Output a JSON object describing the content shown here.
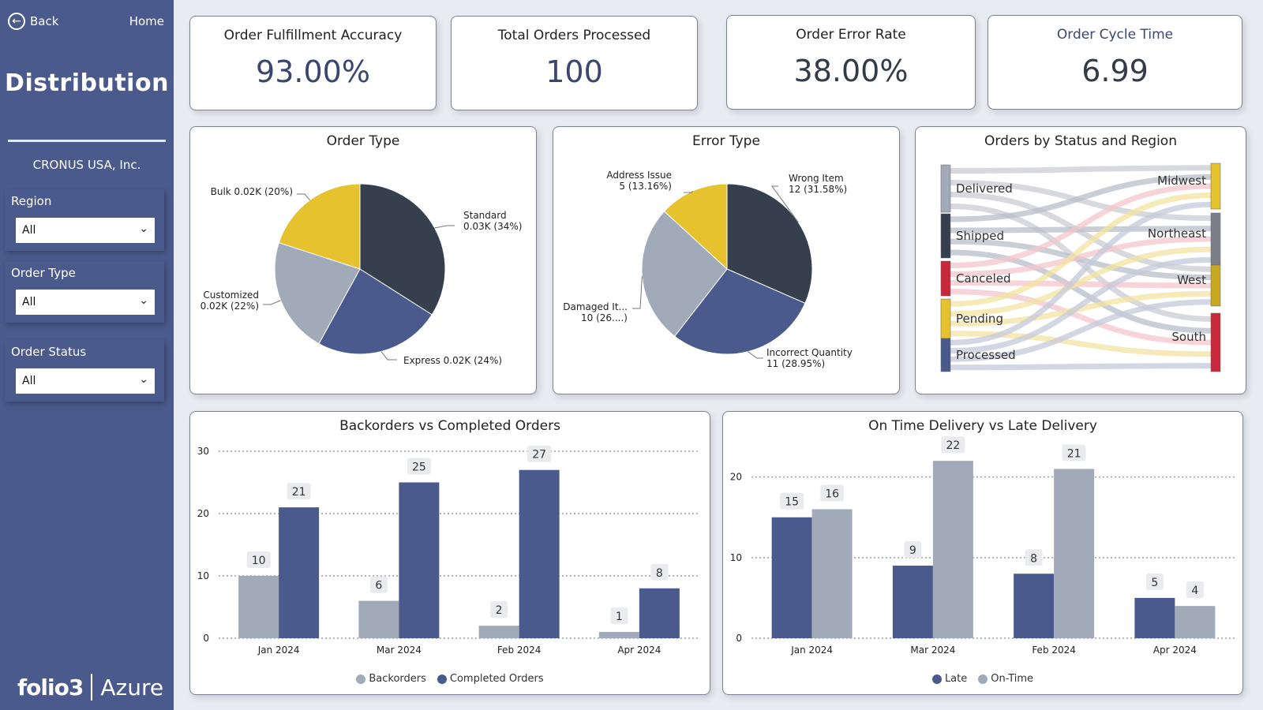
{
  "nav": {
    "back_label": "Back",
    "home_label": "Home"
  },
  "sidebar": {
    "title": "Distribution",
    "company": "CRONUS USA, Inc.",
    "filters": [
      {
        "label": "Region",
        "value": "All"
      },
      {
        "label": "Order Type",
        "value": "All"
      },
      {
        "label": "Order Status",
        "value": "All"
      }
    ],
    "brand_left": "folio3",
    "brand_right": "Azure"
  },
  "kpis": [
    {
      "label": "Order Fulfillment Accuracy",
      "value": "93.00%"
    },
    {
      "label": "Total Orders Processed",
      "value": "100"
    },
    {
      "label": "Order Error Rate",
      "value": "38.00%"
    },
    {
      "label": "Order Cycle Time",
      "value": "6.99"
    }
  ],
  "colors": {
    "navy": "#4a5a8c",
    "dark": "#363f4e",
    "gray": "#a0aab9",
    "yellow": "#e6c22f",
    "red": "#c8283c",
    "gold": "#c8a820",
    "slate": "#7a7f88"
  },
  "chart_data": [
    {
      "type": "pie",
      "title": "Order Type",
      "slices": [
        {
          "label": "Standard",
          "value": 34,
          "text_1": "Standard",
          "text_2": "0.03K (34%)",
          "color": "#363f4e"
        },
        {
          "label": "Express",
          "value": 24,
          "text_1": "Express 0.02K (24%)",
          "text_2": "",
          "color": "#4a5a8c"
        },
        {
          "label": "Customized",
          "value": 22,
          "text_1": "Customized",
          "text_2": "0.02K (22%)",
          "color": "#a0aab9"
        },
        {
          "label": "Bulk",
          "value": 20,
          "text_1": "Bulk 0.02K (20%)",
          "text_2": "",
          "color": "#e6c22f"
        }
      ]
    },
    {
      "type": "pie",
      "title": "Error Type",
      "slices": [
        {
          "label": "Wrong Item",
          "value": 12,
          "text_1": "Wrong Item",
          "text_2": "12 (31.58%)",
          "color": "#363f4e"
        },
        {
          "label": "Incorrect Quantity",
          "value": 11,
          "text_1": "Incorrect Quantity",
          "text_2": "11 (28.95%)",
          "color": "#4a5a8c"
        },
        {
          "label": "Damaged It...",
          "value": 10,
          "text_1": "Damaged It...",
          "text_2": "10 (26....)",
          "color": "#a0aab9"
        },
        {
          "label": "Address Issue",
          "value": 5,
          "text_1": "Address Issue",
          "text_2": "5 (13.16%)",
          "color": "#e6c22f"
        }
      ]
    },
    {
      "type": "sankey",
      "title": "Orders by Status and Region",
      "sources": [
        {
          "label": "Delivered",
          "color": "#a0aab9"
        },
        {
          "label": "Shipped",
          "color": "#363f4e"
        },
        {
          "label": "Canceled",
          "color": "#c8283c"
        },
        {
          "label": "Pending",
          "color": "#e6c22f"
        },
        {
          "label": "Processed",
          "color": "#4a5a8c"
        }
      ],
      "targets": [
        {
          "label": "Midwest",
          "color": "#e6c22f"
        },
        {
          "label": "Northeast",
          "color": "#7a7f88"
        },
        {
          "label": "West",
          "color": "#c8a820"
        },
        {
          "label": "South",
          "color": "#c8283c"
        }
      ]
    },
    {
      "type": "bar",
      "title": "Backorders vs Completed Orders",
      "categories": [
        "Jan 2024",
        "Mar 2024",
        "Feb 2024",
        "Apr 2024"
      ],
      "ylim": [
        0,
        30
      ],
      "yticks": [
        "0",
        "10",
        "20",
        "30"
      ],
      "series": [
        {
          "name": "Backorders",
          "values": [
            10,
            6,
            2,
            1
          ],
          "color": "#a0aab9"
        },
        {
          "name": "Completed Orders",
          "values": [
            21,
            25,
            27,
            8
          ],
          "color": "#4a5a8c"
        }
      ]
    },
    {
      "type": "bar",
      "title": "On Time Delivery vs Late Delivery",
      "categories": [
        "Jan 2024",
        "Mar 2024",
        "Feb 2024",
        "Apr 2024"
      ],
      "ylim": [
        0,
        23
      ],
      "yticks": [
        "0",
        "10",
        "20"
      ],
      "series": [
        {
          "name": "Late",
          "values": [
            15,
            9,
            8,
            5
          ],
          "color": "#4a5a8c"
        },
        {
          "name": "On-Time",
          "values": [
            16,
            22,
            21,
            4
          ],
          "color": "#a0aab9"
        }
      ]
    }
  ]
}
